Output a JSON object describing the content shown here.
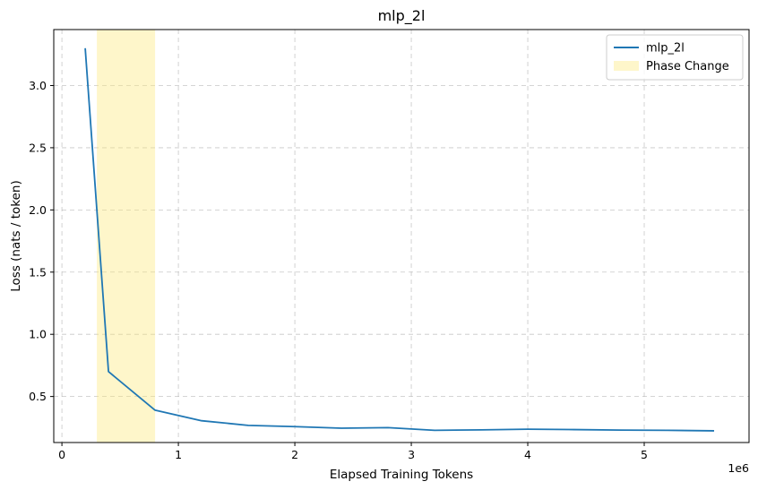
{
  "chart_data": {
    "type": "line",
    "title": "mlp_2l",
    "xlabel": "Elapsed Training Tokens",
    "ylabel": "Loss (nats / token)",
    "x_offset_label": "1e6",
    "xlim": [
      -0.07,
      5.9
    ],
    "ylim": [
      0.13,
      3.45
    ],
    "x_ticks": [
      0,
      1,
      2,
      3,
      4,
      5
    ],
    "x_tick_labels": [
      "0",
      "1",
      "2",
      "3",
      "4",
      "5"
    ],
    "y_ticks": [
      0.5,
      1.0,
      1.5,
      2.0,
      2.5,
      3.0
    ],
    "y_tick_labels": [
      "0.5",
      "1.0",
      "1.5",
      "2.0",
      "2.5",
      "3.0"
    ],
    "grid": true,
    "legend_position": "top-right",
    "series": [
      {
        "name": "mlp_2l",
        "color": "#1f77b4",
        "x": [
          0.2,
          0.4,
          0.8,
          1.2,
          1.6,
          2.0,
          2.4,
          2.8,
          3.2,
          3.6,
          4.0,
          4.4,
          4.8,
          5.2,
          5.6
        ],
        "y": [
          3.3,
          0.7,
          0.39,
          0.305,
          0.268,
          0.258,
          0.245,
          0.25,
          0.228,
          0.232,
          0.237,
          0.234,
          0.23,
          0.228,
          0.224
        ]
      }
    ],
    "shaded_region": {
      "name": "Phase Change",
      "x_start": 0.3,
      "x_end": 0.8,
      "color": "#fde97a"
    }
  }
}
